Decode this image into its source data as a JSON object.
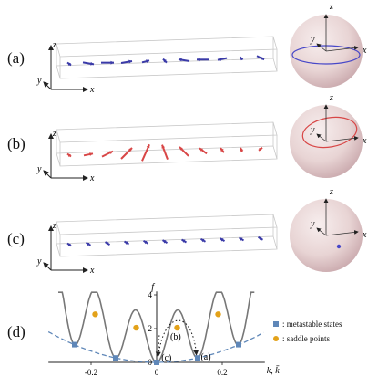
{
  "figure": {
    "panels": [
      {
        "label": "(a)",
        "color": "#3a3aa8"
      },
      {
        "label": "(b)",
        "color": "#d84646"
      },
      {
        "label": "(c)",
        "color": "#3a3aa8"
      },
      {
        "label": "(d)"
      }
    ],
    "axis_labels": {
      "x": "x",
      "y": "y",
      "z": "z"
    },
    "sphere_axis_labels": {
      "x": "x",
      "y": "y",
      "z": "z"
    },
    "legend": [
      {
        "label": ": metastable states",
        "color": "#5f87b8",
        "shape": "square"
      },
      {
        "label": ": saddle points",
        "color": "#e3a21a",
        "shape": "circle"
      }
    ],
    "plot_labels": {
      "f_axis": "f",
      "k_axis": "k, k̄",
      "mark_a": "(a)",
      "mark_b": "(b)",
      "mark_c": "(c)"
    }
  },
  "chart_data": {
    "type": "line",
    "xlabel": "k, k̄",
    "ylabel": "f",
    "x_ticks": [
      -0.2,
      0,
      0.2
    ],
    "y_ticks": [
      0,
      2,
      4
    ],
    "x_tick_labels": [
      "-0.2",
      "0",
      "0.2"
    ],
    "y_tick_labels": [
      "0",
      "2",
      "4"
    ],
    "xlim": [
      -0.33,
      0.33
    ],
    "ylim": [
      -0.1,
      4.2
    ],
    "series": [
      {
        "style": "solid-gray",
        "values": "energy landscape"
      },
      {
        "style": "dashed-blue",
        "values": "envelope"
      }
    ],
    "metastable_states": {
      "k": [
        -0.25,
        -0.125,
        0,
        0.125,
        0.25
      ],
      "f": [
        1.05,
        0.26,
        0.0,
        0.26,
        1.05
      ]
    },
    "saddle_points": {
      "k": [
        -0.1875,
        -0.0625,
        0.0625,
        0.1875
      ],
      "f": [
        2.85,
        2.05,
        2.05,
        2.85
      ]
    }
  }
}
